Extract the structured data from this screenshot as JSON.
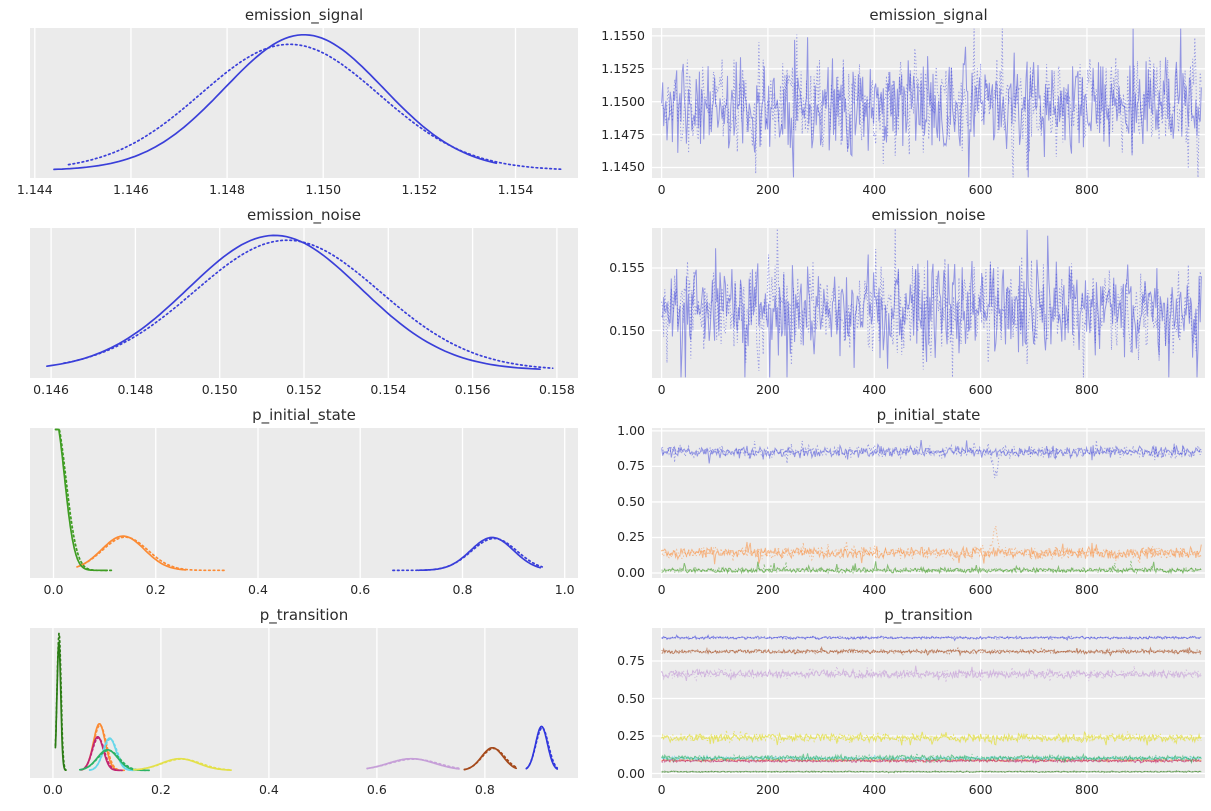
{
  "figure": {
    "plot_bg": "#ebebeb",
    "grid_color": "#ffffff",
    "text_color": "#262626",
    "n_rows": 4,
    "n_cols": 2,
    "n_chains": 2,
    "chain_styles": [
      "solid",
      "dotted"
    ]
  },
  "chart_data": [
    {
      "id": "emission_signal_kde",
      "type": "kde",
      "title": "emission_signal",
      "row": 0,
      "col": 0,
      "xlabel": "",
      "ylabel": "",
      "xlim": [
        1.1439,
        1.1553
      ],
      "xticks": [
        1.144,
        1.146,
        1.148,
        1.15,
        1.152,
        1.154
      ],
      "xtick_labels": [
        "1.144",
        "1.146",
        "1.148",
        "1.150",
        "1.152",
        "1.154"
      ],
      "series": [
        {
          "name": "emission_signal",
          "color": "#3a3fd9",
          "mean": 1.1496,
          "sd": 0.00165,
          "height": 0.99,
          "range": [
            1.1444,
            1.1536
          ],
          "mean2": 1.1493,
          "sd2": 0.00185,
          "h2": 0.92,
          "range2": [
            1.1447,
            1.155
          ]
        }
      ]
    },
    {
      "id": "emission_signal_trace",
      "type": "trace",
      "title": "emission_signal",
      "row": 0,
      "col": 1,
      "xlim": [
        -18,
        1022
      ],
      "x_end": 1015,
      "n": 500,
      "xticks": [
        0,
        200,
        400,
        600,
        800
      ],
      "xtick_labels": [
        "0",
        "200",
        "400",
        "600",
        "800"
      ],
      "ylim": [
        1.1442,
        1.1556
      ],
      "yticks": [
        1.145,
        1.1475,
        1.15,
        1.1525,
        1.155
      ],
      "ytick_labels": [
        "1.1450",
        "1.1475",
        "1.1500",
        "1.1525",
        "1.1550"
      ],
      "series": [
        {
          "name": "emission_signal",
          "color": "#3a3fd9",
          "mean": 1.1497,
          "amp": 0.004,
          "seed": 11,
          "opacity": 0.5,
          "spike_p": 0.05
        }
      ]
    },
    {
      "id": "emission_noise_kde",
      "type": "kde",
      "title": "emission_noise",
      "row": 1,
      "col": 0,
      "xlim": [
        0.1455,
        0.1585
      ],
      "xticks": [
        0.146,
        0.148,
        0.15,
        0.152,
        0.154,
        0.156,
        0.158
      ],
      "xtick_labels": [
        "0.146",
        "0.148",
        "0.150",
        "0.152",
        "0.154",
        "0.156",
        "0.158"
      ],
      "series": [
        {
          "name": "emission_noise",
          "color": "#3a3fd9",
          "mean": 0.1513,
          "sd": 0.00205,
          "height": 0.985,
          "range": [
            0.1459,
            0.1576
          ],
          "mean2": 0.1516,
          "sd2": 0.0022,
          "h2": 0.95,
          "range2": [
            0.1463,
            0.1579
          ]
        }
      ]
    },
    {
      "id": "emission_noise_trace",
      "type": "trace",
      "title": "emission_noise",
      "row": 1,
      "col": 1,
      "xlim": [
        -18,
        1022
      ],
      "x_end": 1015,
      "n": 500,
      "xticks": [
        0,
        200,
        400,
        600,
        800
      ],
      "xtick_labels": [
        "0",
        "200",
        "400",
        "600",
        "800"
      ],
      "ylim": [
        0.1462,
        0.1582
      ],
      "yticks": [
        0.15,
        0.155
      ],
      "ytick_labels": [
        "0.150",
        "0.155"
      ],
      "series": [
        {
          "name": "emission_noise",
          "color": "#3a3fd9",
          "mean": 0.1517,
          "amp": 0.0045,
          "seed": 21,
          "opacity": 0.5,
          "spike_p": 0.05
        }
      ]
    },
    {
      "id": "p_initial_state_kde",
      "type": "kde",
      "title": "p_initial_state",
      "row": 2,
      "col": 0,
      "xlim": [
        -0.046,
        1.026
      ],
      "xticks": [
        0.0,
        0.2,
        0.4,
        0.6,
        0.8,
        1.0
      ],
      "xtick_labels": [
        "0.0",
        "0.2",
        "0.4",
        "0.6",
        "0.8",
        "1.0"
      ],
      "series": [
        {
          "name": "p_initial_state[0]",
          "color": "#3a3fd9",
          "mean": 0.858,
          "sd": 0.042,
          "height": 0.24,
          "range": [
            0.714,
            0.952
          ],
          "range2": [
            0.664,
            0.956
          ]
        },
        {
          "name": "p_initial_state[1]",
          "color": "#fb8b35",
          "mean": 0.136,
          "sd": 0.042,
          "height": 0.25,
          "range": [
            0.046,
            0.258
          ],
          "range2": [
            0.052,
            0.335
          ]
        },
        {
          "name": "p_initial_state[2]",
          "color": "#3f9d23",
          "mean": 0.001,
          "sd": 0.02,
          "height": 1.15,
          "range": [
            0.004,
            0.105
          ],
          "range2": [
            0.004,
            0.118
          ]
        }
      ]
    },
    {
      "id": "p_initial_state_trace",
      "type": "trace",
      "title": "p_initial_state",
      "row": 2,
      "col": 1,
      "xlim": [
        -18,
        1022
      ],
      "x_end": 1015,
      "n": 500,
      "xticks": [
        0,
        200,
        400,
        600,
        800
      ],
      "xtick_labels": [
        "0",
        "200",
        "400",
        "600",
        "800"
      ],
      "ylim": [
        -0.035,
        1.02
      ],
      "yticks": [
        0.0,
        0.25,
        0.5,
        0.75,
        1.0
      ],
      "ytick_labels": [
        "0.00",
        "0.25",
        "0.50",
        "0.75",
        "1.00"
      ],
      "series": [
        {
          "name": "p_initial_state[0]",
          "color": "#3a3fd9",
          "mean": 0.852,
          "amp": 0.05,
          "seed": 31,
          "opacity": 0.5,
          "spike_p": 0.04,
          "events": [
            {
              "chain": 1,
              "at": 628,
              "dy": -0.17,
              "width": 5
            }
          ]
        },
        {
          "name": "p_initial_state[1]",
          "color": "#fb8b35",
          "mean": 0.142,
          "amp": 0.048,
          "seed": 41,
          "opacity": 0.55,
          "spike_p": 0.04,
          "events": [
            {
              "chain": 1,
              "at": 628,
              "dy": 0.17,
              "width": 5
            }
          ]
        },
        {
          "name": "p_initial_state[2]",
          "color": "#3f9d23",
          "mean": 0.02,
          "amp": 0.02,
          "seed": 51,
          "opacity": 0.6,
          "min": 0.002,
          "spike_p": 0.06,
          "spike_mult": 3.5
        }
      ]
    },
    {
      "id": "p_transition_kde",
      "type": "kde",
      "title": "p_transition",
      "row": 3,
      "col": 0,
      "xlim": [
        -0.0425,
        0.9725
      ],
      "xticks": [
        0.0,
        0.2,
        0.4,
        0.6,
        0.8
      ],
      "xtick_labels": [
        "0.0",
        "0.2",
        "0.4",
        "0.6",
        "0.8"
      ],
      "series": [
        {
          "name": "p_transition[0, 0]",
          "color": "#3137dd",
          "mean": 0.905,
          "sd": 0.011,
          "height": 0.32,
          "range": [
            0.877,
            0.934
          ]
        },
        {
          "name": "p_transition[0, 1]",
          "color": "#fb8b35",
          "mean": 0.086,
          "sd": 0.011,
          "height": 0.34,
          "range": [
            0.054,
            0.132
          ]
        },
        {
          "name": "p_transition[0, 2]",
          "color": "#2c7d15",
          "mean": 0.011,
          "sd": 0.0035,
          "height": 0.93,
          "h2": 1.0,
          "range": [
            0.0045,
            0.024
          ]
        },
        {
          "name": "p_transition[1, 0]",
          "color": "#c12572",
          "mean": 0.083,
          "sd": 0.0105,
          "height": 0.245,
          "range": [
            0.052,
            0.128
          ]
        },
        {
          "name": "p_transition[1, 1]",
          "color": "#a54a1c",
          "mean": 0.814,
          "sd": 0.02,
          "height": 0.165,
          "range": [
            0.762,
            0.858
          ]
        },
        {
          "name": "p_transition[1, 2]",
          "color": "#67d7ea",
          "mean": 0.105,
          "sd": 0.012,
          "height": 0.235,
          "range": [
            0.068,
            0.152
          ]
        },
        {
          "name": "p_transition[2, 0]",
          "color": "#2bb264",
          "mean": 0.101,
          "sd": 0.019,
          "height": 0.15,
          "range": [
            0.05,
            0.178
          ]
        },
        {
          "name": "p_transition[2, 1]",
          "color": "#e3e04a",
          "mean": 0.235,
          "sd": 0.034,
          "height": 0.085,
          "range": [
            0.15,
            0.33
          ]
        },
        {
          "name": "p_transition[2, 2]",
          "color": "#c69fd8",
          "mean": 0.664,
          "sd": 0.043,
          "height": 0.085,
          "range": [
            0.582,
            0.752
          ]
        }
      ]
    },
    {
      "id": "p_transition_trace",
      "type": "trace",
      "title": "p_transition",
      "row": 3,
      "col": 1,
      "xlim": [
        -18,
        1022
      ],
      "x_end": 1015,
      "n": 500,
      "xticks": [
        0,
        200,
        400,
        600,
        800
      ],
      "xtick_labels": [
        "0",
        "200",
        "400",
        "600",
        "800"
      ],
      "ylim": [
        -0.03,
        0.97
      ],
      "yticks": [
        0.0,
        0.25,
        0.5,
        0.75
      ],
      "ytick_labels": [
        "0.00",
        "0.25",
        "0.50",
        "0.75"
      ],
      "series": [
        {
          "name": "p_transition[0, 1]",
          "color": "#fb8b35",
          "mean": 0.088,
          "amp": 0.011,
          "seed": 61,
          "opacity": 0.55
        },
        {
          "name": "p_transition[0, 2]",
          "color": "#2c7d15",
          "mean": 0.012,
          "amp": 0.005,
          "seed": 63,
          "opacity": 0.55,
          "min": 0.002
        },
        {
          "name": "p_transition[1, 0]",
          "color": "#c12572",
          "mean": 0.084,
          "amp": 0.011,
          "seed": 65,
          "opacity": 0.6
        },
        {
          "name": "p_transition[1, 2]",
          "color": "#67d7ea",
          "mean": 0.102,
          "amp": 0.013,
          "seed": 67,
          "opacity": 0.6
        },
        {
          "name": "p_transition[2, 0]",
          "color": "#2bb264",
          "mean": 0.104,
          "amp": 0.02,
          "seed": 69,
          "opacity": 0.6,
          "spike_p": 0.05
        },
        {
          "name": "p_transition[2, 1]",
          "color": "#e3e04a",
          "mean": 0.238,
          "amp": 0.03,
          "seed": 71,
          "opacity": 0.8,
          "spike_p": 0.05
        },
        {
          "name": "p_transition[2, 2]",
          "color": "#c69fd8",
          "mean": 0.663,
          "amp": 0.033,
          "seed": 73,
          "opacity": 0.65,
          "spike_p": 0.04
        },
        {
          "name": "p_transition[1, 1]",
          "color": "#a54a1c",
          "mean": 0.813,
          "amp": 0.016,
          "seed": 75,
          "opacity": 0.6,
          "spike_p": 0.04
        },
        {
          "name": "p_transition[0, 0]",
          "color": "#3137dd",
          "mean": 0.905,
          "amp": 0.011,
          "seed": 77,
          "opacity": 0.55,
          "spike_p": 0.03
        }
      ]
    }
  ]
}
